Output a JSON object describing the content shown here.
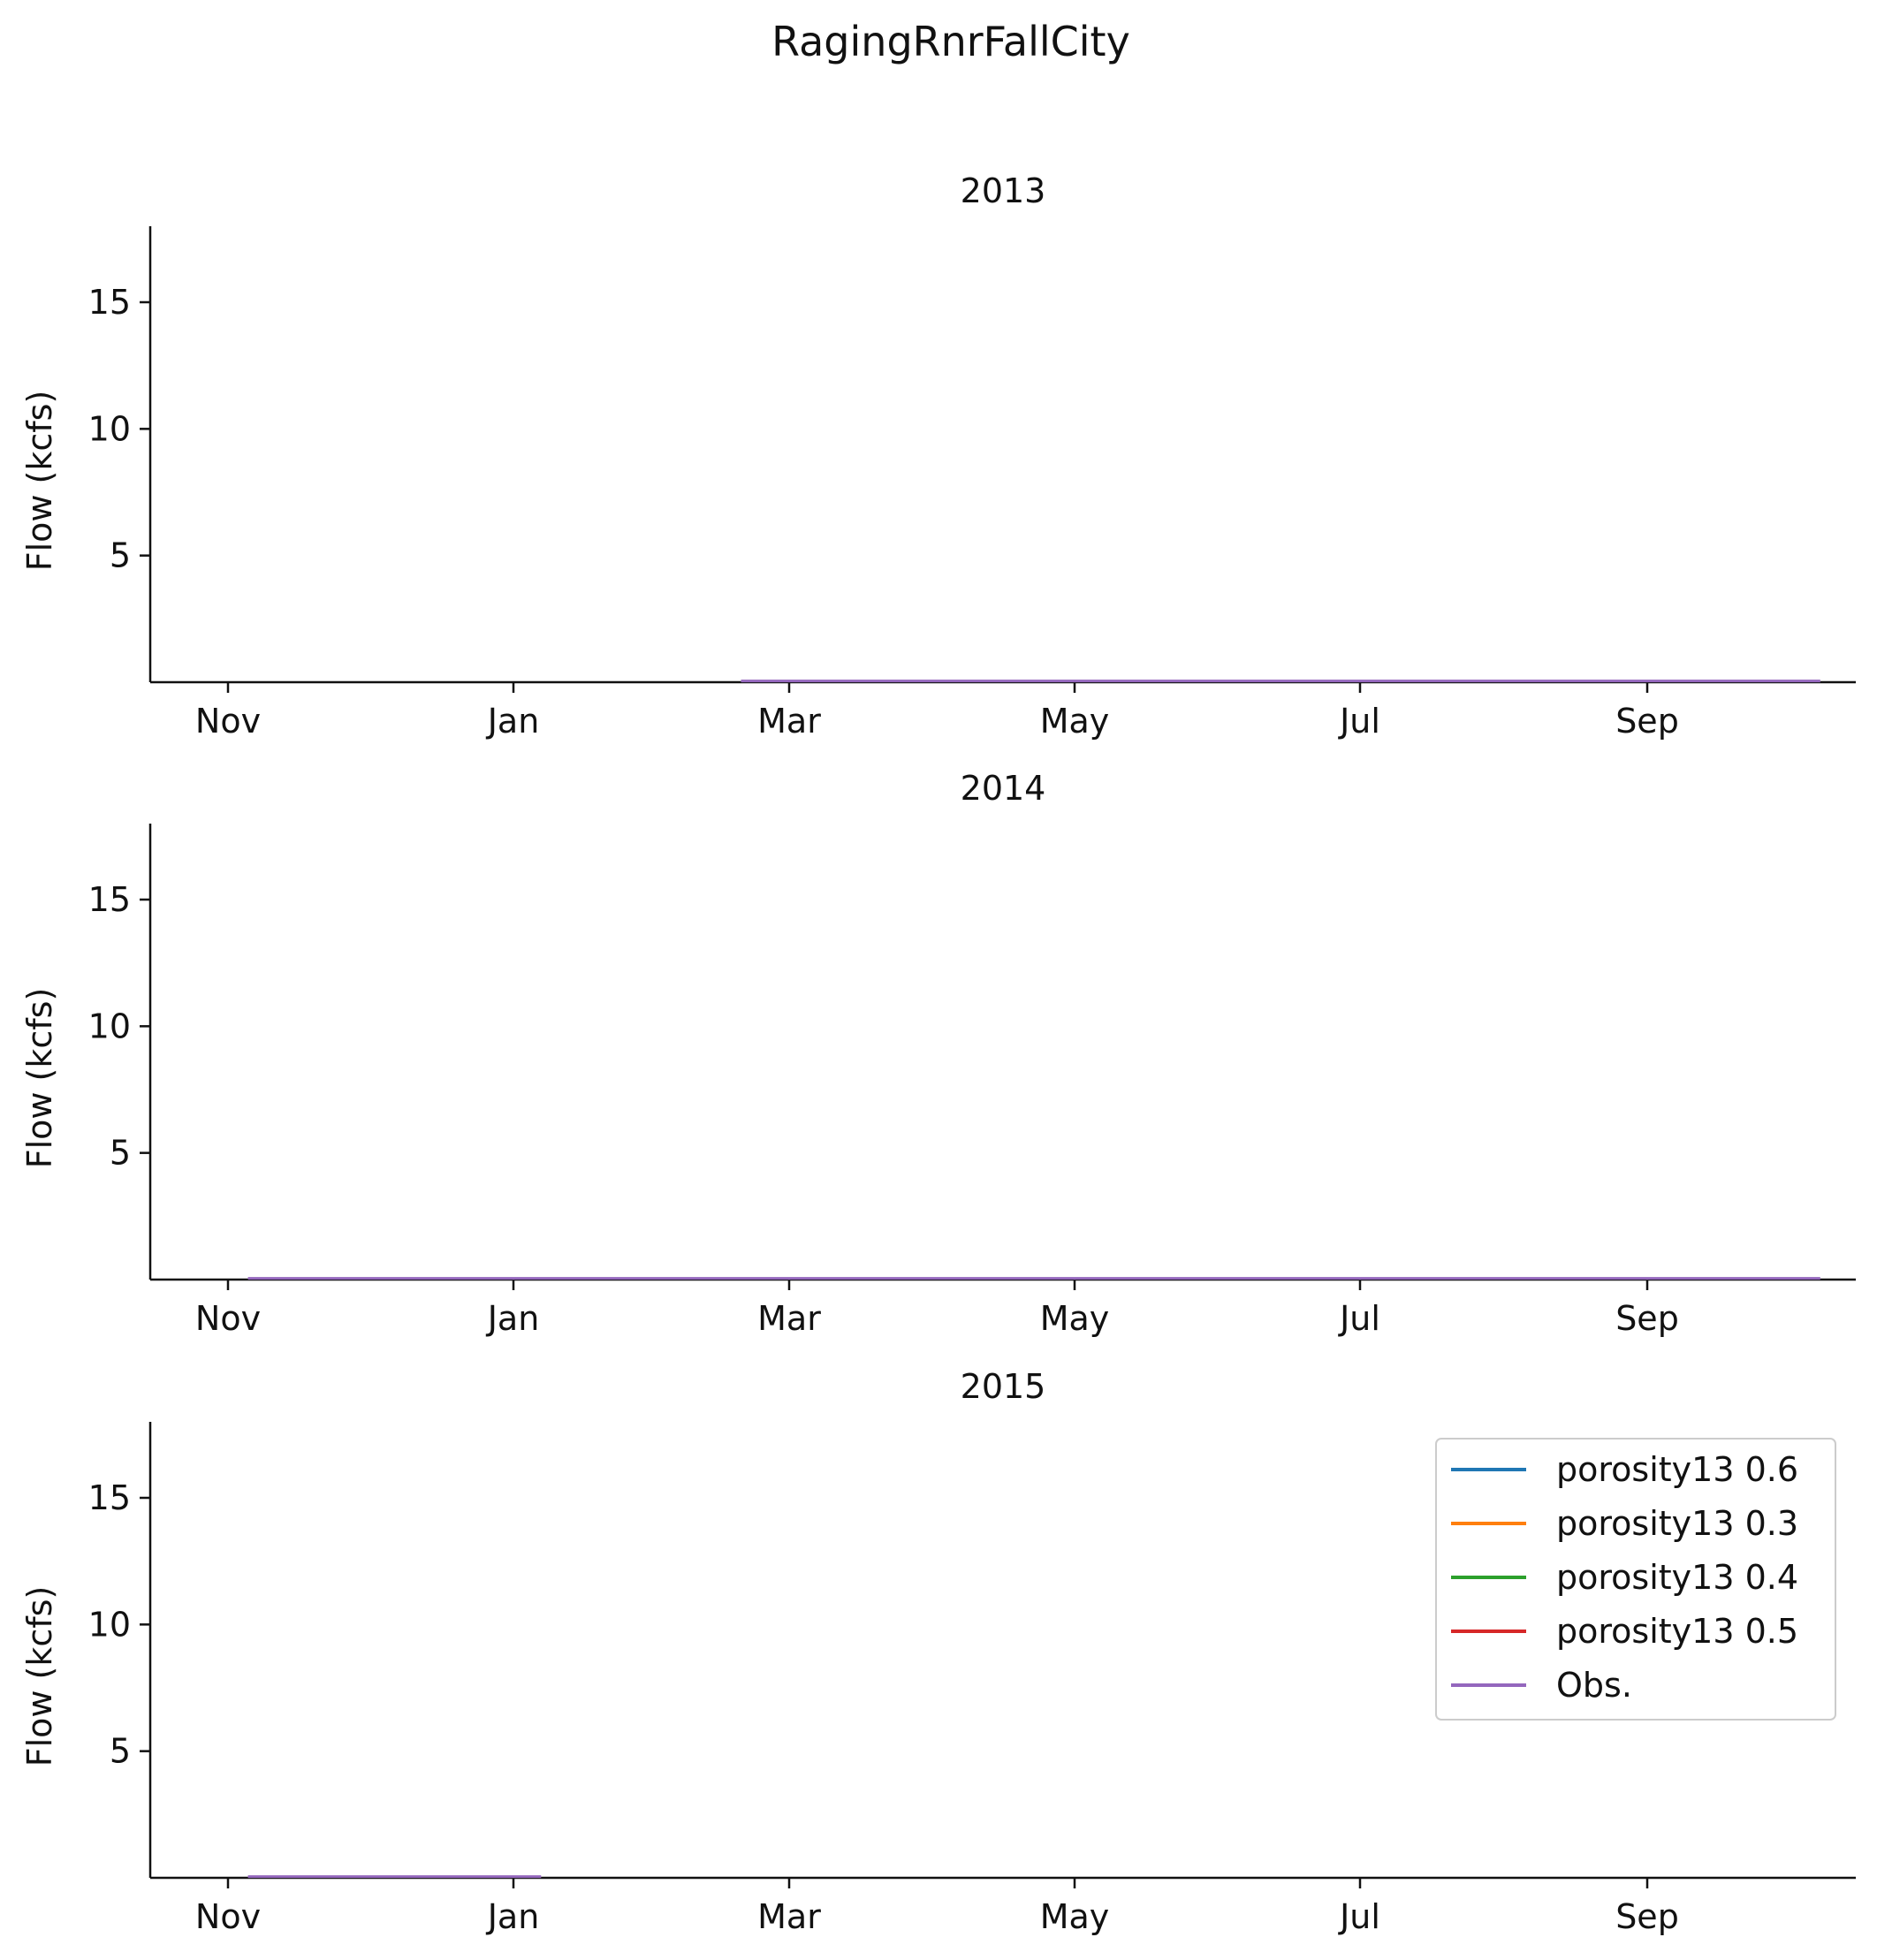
{
  "figure": {
    "title": "RagingRnrFallCity"
  },
  "legend": {
    "placement": "upper-right of last subplot",
    "entries": [
      {
        "label": "porosity13 0.6",
        "color": "#1f77b4"
      },
      {
        "label": "porosity13 0.3",
        "color": "#ff7f0e"
      },
      {
        "label": "porosity13 0.4",
        "color": "#2ca02c"
      },
      {
        "label": "porosity13 0.5",
        "color": "#d62728"
      },
      {
        "label": "Obs.",
        "color": "#9467bd"
      }
    ]
  },
  "chart_data": [
    {
      "type": "line",
      "title": "2013",
      "xlabel": "",
      "ylabel": "Flow (kcfs)",
      "x_ticks": [
        "Nov",
        "Jan",
        "Mar",
        "May",
        "Jul",
        "Sep"
      ],
      "y_ticks": [
        5,
        10,
        15
      ],
      "ylim": [
        0,
        18
      ],
      "xlim": [
        "2012-10-04",
        "2013-10-23"
      ],
      "grid": false,
      "series": [
        {
          "name": "Obs.",
          "color": "#9467bd",
          "x": [
            "2013-02-14",
            "2013-10-15"
          ],
          "y": [
            0.05,
            0.05
          ]
        }
      ]
    },
    {
      "type": "line",
      "title": "2014",
      "xlabel": "",
      "ylabel": "Flow (kcfs)",
      "x_ticks": [
        "Nov",
        "Jan",
        "Mar",
        "May",
        "Jul",
        "Sep"
      ],
      "y_ticks": [
        5,
        10,
        15
      ],
      "ylim": [
        0,
        18
      ],
      "xlim": [
        "2013-10-04",
        "2014-10-23"
      ],
      "grid": false,
      "series": [
        {
          "name": "Obs.",
          "color": "#9467bd",
          "x": [
            "2013-10-26",
            "2014-10-15"
          ],
          "y": [
            0.05,
            0.05
          ]
        }
      ]
    },
    {
      "type": "line",
      "title": "2015",
      "xlabel": "",
      "ylabel": "Flow (kcfs)",
      "x_ticks": [
        "Nov",
        "Jan",
        "Mar",
        "May",
        "Jul",
        "Sep"
      ],
      "y_ticks": [
        5,
        10,
        15
      ],
      "ylim": [
        0,
        18
      ],
      "xlim": [
        "2014-10-04",
        "2015-10-23"
      ],
      "grid": false,
      "series": [
        {
          "name": "Obs.",
          "color": "#9467bd",
          "x": [
            "2014-10-26",
            "2014-12-31"
          ],
          "y": [
            0.05,
            0.05
          ]
        }
      ]
    }
  ]
}
